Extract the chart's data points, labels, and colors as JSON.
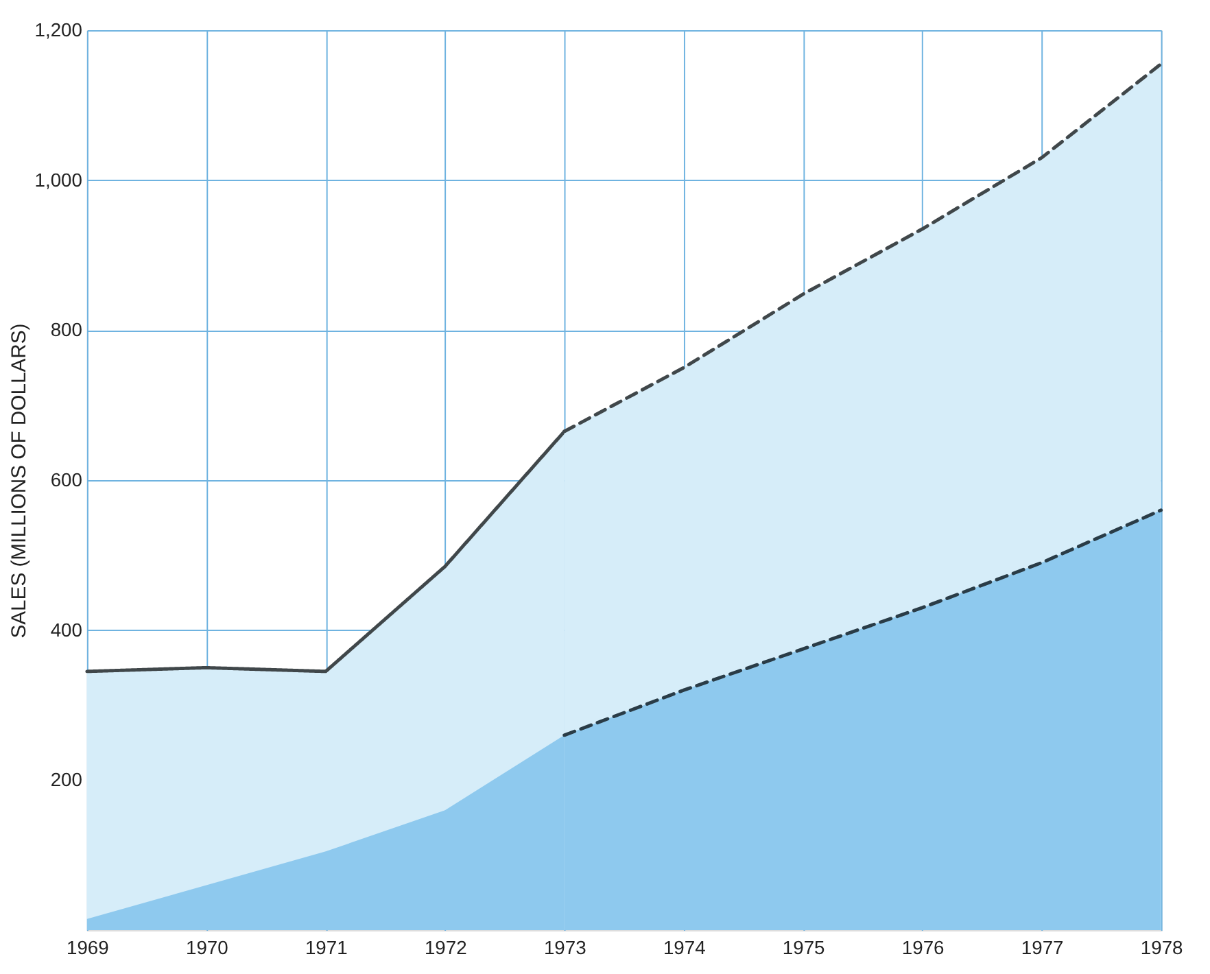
{
  "chart_data": {
    "type": "area",
    "ylabel": "SALES (MILLIONS OF DOLLARS)",
    "series": [
      {
        "color": "#d6edf9",
        "line_style": "solid",
        "x": [
          1969,
          1970,
          1971,
          1972,
          1973
        ],
        "values": [
          345,
          350,
          345,
          485,
          665
        ]
      },
      {
        "color": "#d6edf9",
        "line_style": "dashed",
        "x": [
          1973,
          1974,
          1975,
          1976,
          1977,
          1978
        ],
        "values": [
          665,
          750,
          848,
          935,
          1030,
          1155
        ]
      },
      {
        "color": "#8ec9ee",
        "x": [
          1969,
          1970,
          1971,
          1972,
          1973
        ],
        "values": [
          15,
          60,
          105,
          160,
          260
        ]
      },
      {
        "color": "#8ec9ee",
        "line_style": "dashed",
        "x": [
          1973,
          1974,
          1975,
          1976,
          1977,
          1978
        ],
        "values": [
          260,
          320,
          375,
          430,
          490,
          560
        ]
      }
    ],
    "xlim": [
      1969,
      1978
    ],
    "xticks": [
      1969,
      1970,
      1971,
      1972,
      1973,
      1974,
      1975,
      1976,
      1977,
      1978
    ],
    "ylim": [
      0,
      1200
    ],
    "yticks": [
      200,
      400,
      600,
      800,
      {
        "value": 1000,
        "label": "1,000"
      },
      {
        "value": 1200,
        "label": "1,200"
      }
    ],
    "grid": true
  }
}
